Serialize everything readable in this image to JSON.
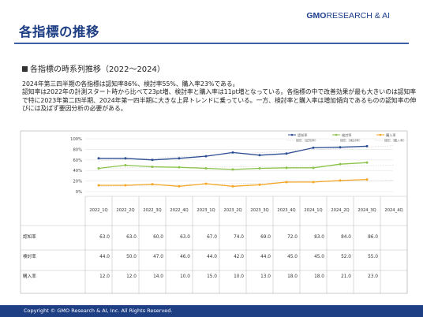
{
  "slide": {
    "title": "各指標の推移",
    "logo_main": "GMO",
    "logo_rest": "RESEARCH & AI",
    "section_label": "各指標の時系列推移（2022～2024）",
    "paragraph_1": "2024年第三四半期の各指標は認知率86%、検討率55%、購入率23%である。",
    "paragraph_2": "認知率は2022年の計測スタート時から比べて23pt増、検討率と購入率は11pt増となっている。各指標の中で改善効果が最も大きいのは認知率で特に2023年第二四半期、2024年第一四半期に大きな上昇トレンドに乗っている。一方、検討率と購入率は増加傾向であるものの認知率の伸びには及ばず要因分析の必要がある。",
    "footer": "Copyright © GMO Research & AI, Inc. All Rights Reserved."
  },
  "chart_data": {
    "type": "line",
    "categories": [
      "2022_1Q",
      "2022_2Q",
      "2022_3Q",
      "2022_4Q",
      "2023_1Q",
      "2023_2Q",
      "2023_3Q",
      "2023_4Q",
      "2024_1Q",
      "2024_2Q",
      "2024_3Q",
      "2024_4Q"
    ],
    "series": [
      {
        "name": "認知率",
        "color": "#2e4f94",
        "values": [
          63.0,
          63.0,
          60.0,
          63.0,
          67.0,
          74.0,
          69.0,
          72.0,
          83.0,
          84.0,
          86.0,
          null
        ]
      },
      {
        "name": "検討率",
        "color": "#8bc34a",
        "values": [
          44.0,
          50.0,
          47.0,
          46.0,
          44.0,
          42.0,
          44.0,
          45.0,
          45.0,
          52.0,
          55.0,
          null
        ]
      },
      {
        "name": "購入率",
        "color": "#f5a623",
        "values": [
          12.0,
          12.0,
          14.0,
          10.0,
          15.0,
          10.0,
          13.0,
          18.0,
          18.0,
          21.0,
          23.0,
          null
        ]
      }
    ],
    "forecast_labels": [
      "線形（認知率）",
      "線形（検討率）",
      "線形（購入率）"
    ],
    "yticks": [
      "0%",
      "20%",
      "40%",
      "60%",
      "80%",
      "100%"
    ],
    "ylim": [
      0,
      100
    ],
    "value_format": "0.0",
    "legend_position": "top-right"
  }
}
